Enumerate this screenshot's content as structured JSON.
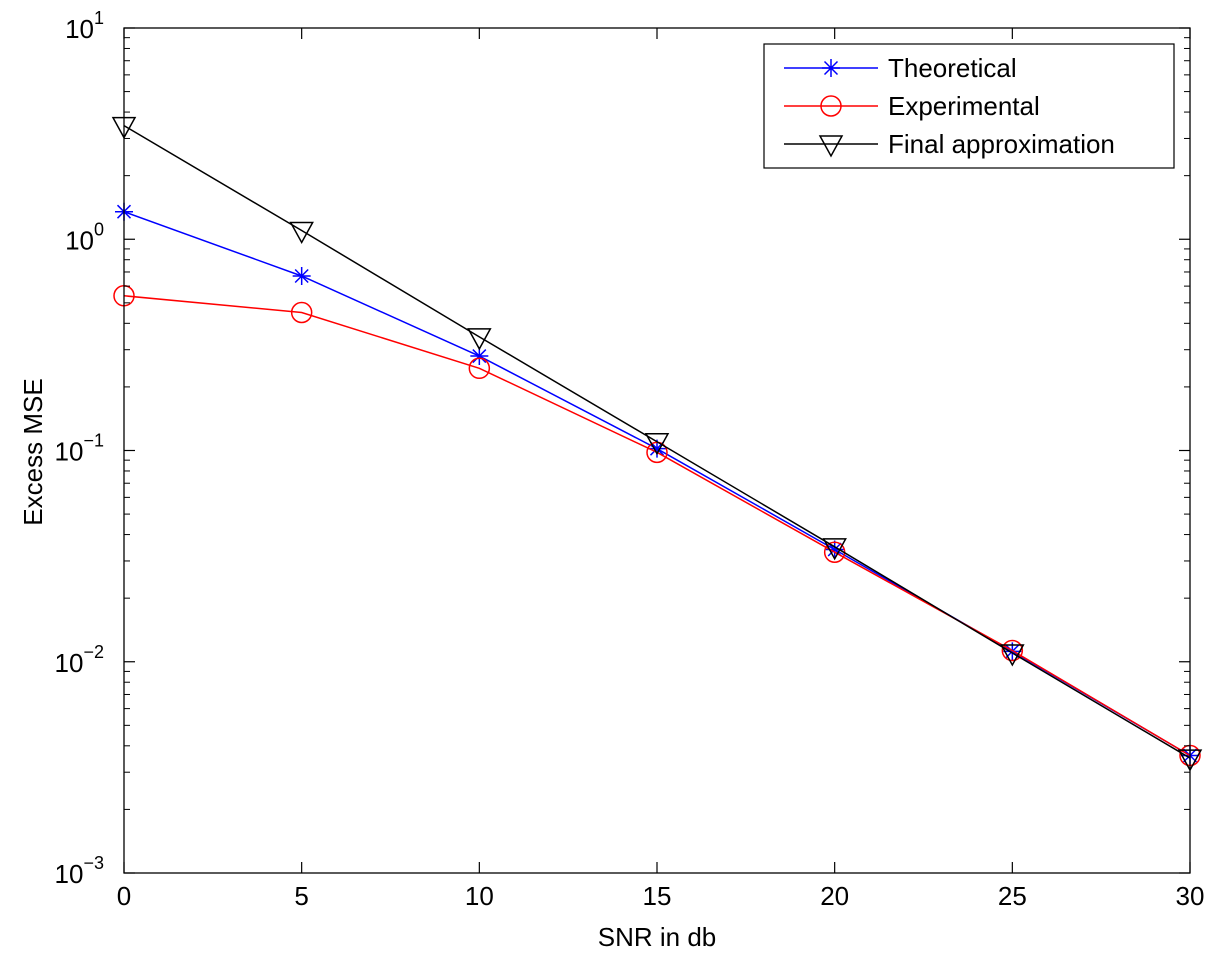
{
  "chart_data": {
    "type": "line",
    "title": "",
    "xlabel": "SNR in db",
    "ylabel": "Excess MSE",
    "x_scale": "linear",
    "y_scale": "log",
    "xlim": [
      0,
      30
    ],
    "ylim": [
      0.001,
      10
    ],
    "x_ticks": [
      0,
      5,
      10,
      15,
      20,
      25,
      30
    ],
    "x_tick_labels": [
      "0",
      "5",
      "10",
      "15",
      "20",
      "25",
      "30"
    ],
    "y_ticks": [
      {
        "value": 0.001,
        "base": "10",
        "exp": "−3"
      },
      {
        "value": 0.01,
        "base": "10",
        "exp": "−2"
      },
      {
        "value": 0.1,
        "base": "10",
        "exp": "−1"
      },
      {
        "value": 1,
        "base": "10",
        "exp": "0"
      },
      {
        "value": 10,
        "base": "10",
        "exp": "1"
      }
    ],
    "grid": false,
    "legend_position": "top-right",
    "x": [
      0,
      5,
      10,
      15,
      20,
      25,
      30
    ],
    "series": [
      {
        "name": "Theoretical",
        "color": "#0000ff",
        "marker": "asterisk",
        "values": [
          1.35,
          0.67,
          0.28,
          0.102,
          0.034,
          0.0112,
          0.0036
        ]
      },
      {
        "name": "Experimental",
        "color": "#ff0000",
        "marker": "circle",
        "values": [
          0.54,
          0.45,
          0.245,
          0.098,
          0.033,
          0.0113,
          0.0036
        ]
      },
      {
        "name": "Final approximation",
        "color": "#000000",
        "marker": "triangle-down",
        "values": [
          3.45,
          1.1,
          0.345,
          0.11,
          0.035,
          0.011,
          0.0035
        ]
      }
    ]
  }
}
